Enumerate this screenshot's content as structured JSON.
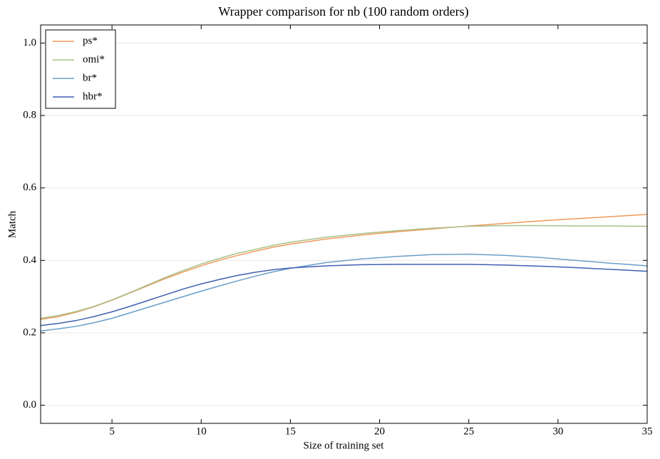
{
  "chart_data": {
    "type": "line",
    "title": "Wrapper comparison for nb (100 random orders)",
    "xlabel": "Size of training set",
    "ylabel": "Match",
    "x": [
      1,
      2,
      3,
      4,
      5,
      6,
      7,
      8,
      9,
      10,
      11,
      12,
      13,
      14,
      15,
      17,
      19,
      21,
      23,
      25,
      27,
      29,
      31,
      33,
      35
    ],
    "series": [
      {
        "name": "ps*",
        "color": "#ee9a5a",
        "values": [
          0.237,
          0.245,
          0.257,
          0.272,
          0.29,
          0.31,
          0.33,
          0.35,
          0.368,
          0.385,
          0.4,
          0.413,
          0.425,
          0.436,
          0.445,
          0.459,
          0.47,
          0.479,
          0.487,
          0.495,
          0.502,
          0.509,
          0.515,
          0.521,
          0.527
        ]
      },
      {
        "name": "omi*",
        "color": "#a8c08a",
        "values": [
          0.24,
          0.248,
          0.259,
          0.273,
          0.291,
          0.311,
          0.332,
          0.353,
          0.372,
          0.39,
          0.405,
          0.419,
          0.43,
          0.441,
          0.45,
          0.464,
          0.474,
          0.482,
          0.489,
          0.494,
          0.496,
          0.496,
          0.495,
          0.495,
          0.494
        ]
      },
      {
        "name": "br*",
        "color": "#6a9ec8",
        "values": [
          0.205,
          0.211,
          0.218,
          0.228,
          0.24,
          0.255,
          0.27,
          0.285,
          0.3,
          0.315,
          0.329,
          0.343,
          0.356,
          0.368,
          0.378,
          0.394,
          0.404,
          0.411,
          0.416,
          0.417,
          0.414,
          0.408,
          0.4,
          0.392,
          0.385
        ]
      },
      {
        "name": "hbr*",
        "color": "#4060b0",
        "values": [
          0.22,
          0.226,
          0.234,
          0.245,
          0.258,
          0.273,
          0.289,
          0.305,
          0.321,
          0.335,
          0.347,
          0.358,
          0.367,
          0.374,
          0.379,
          0.385,
          0.388,
          0.389,
          0.389,
          0.389,
          0.387,
          0.384,
          0.38,
          0.375,
          0.37
        ]
      }
    ],
    "xlim": [
      1,
      35
    ],
    "xticks": [
      5,
      10,
      15,
      20,
      25,
      30,
      35
    ],
    "ylim": [
      -0.05,
      1.05
    ],
    "yticks": [
      {
        "value": 0,
        "label": "0.0"
      },
      0.2,
      0.4,
      0.6,
      0.8,
      {
        "value": 1,
        "label": "1.0"
      }
    ],
    "grid": true,
    "legend": "upper-left"
  }
}
